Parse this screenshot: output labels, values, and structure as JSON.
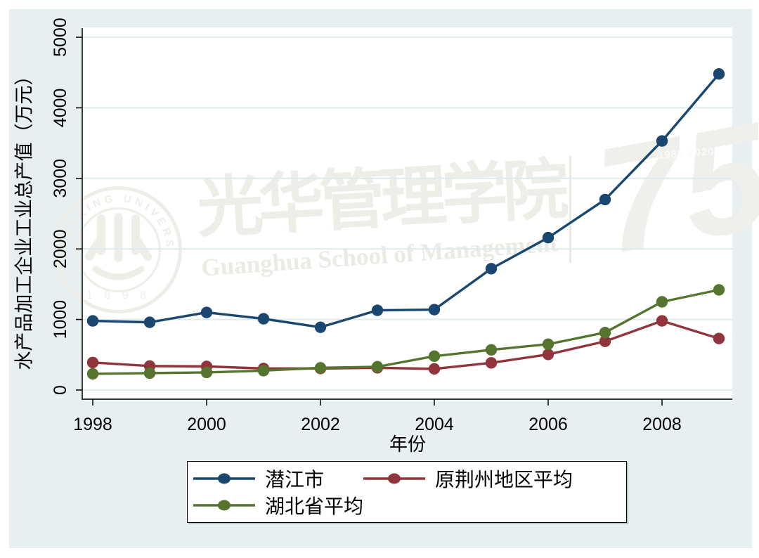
{
  "figure": {
    "background": "#e8eff0",
    "plot_background": "#ffffff",
    "gridline_color": "#dfeaec",
    "axis_color": "#1a1a1a"
  },
  "chart_data": {
    "type": "line",
    "title": "",
    "xlabel": "年份",
    "ylabel": "水产品加工企业工业总产值（万元）",
    "x": [
      1998,
      1999,
      2000,
      2001,
      2002,
      2003,
      2004,
      2005,
      2006,
      2007,
      2008,
      2009
    ],
    "xticks": [
      1998,
      2000,
      2002,
      2004,
      2006,
      2008
    ],
    "yticks": [
      0,
      1000,
      2000,
      3000,
      4000,
      5000
    ],
    "xlim": [
      1998,
      2009.25
    ],
    "ylim": [
      0,
      5000
    ],
    "grid": true,
    "legend_position": "bottom",
    "series": [
      {
        "name": "潜江市",
        "color": "#1a476f",
        "values": [
          980,
          960,
          1100,
          1010,
          890,
          1130,
          1140,
          1720,
          2160,
          2700,
          3530,
          4480
        ]
      },
      {
        "name": "原荆州地区平均",
        "color": "#90353b",
        "values": [
          390,
          340,
          335,
          305,
          305,
          315,
          300,
          385,
          505,
          690,
          980,
          730
        ]
      },
      {
        "name": "湖北省平均",
        "color": "#55752f",
        "values": [
          230,
          240,
          250,
          275,
          315,
          330,
          480,
          570,
          650,
          815,
          1250,
          1420
        ]
      }
    ]
  },
  "watermark": {
    "seal_ring_text": "PEKING UNIVERSITY",
    "seal_year": "1 8 9 8",
    "calligraphy": "光华管理学院",
    "english": "Guanghua School of Management",
    "logo_number": "75",
    "logo_years": "1985-2020"
  }
}
